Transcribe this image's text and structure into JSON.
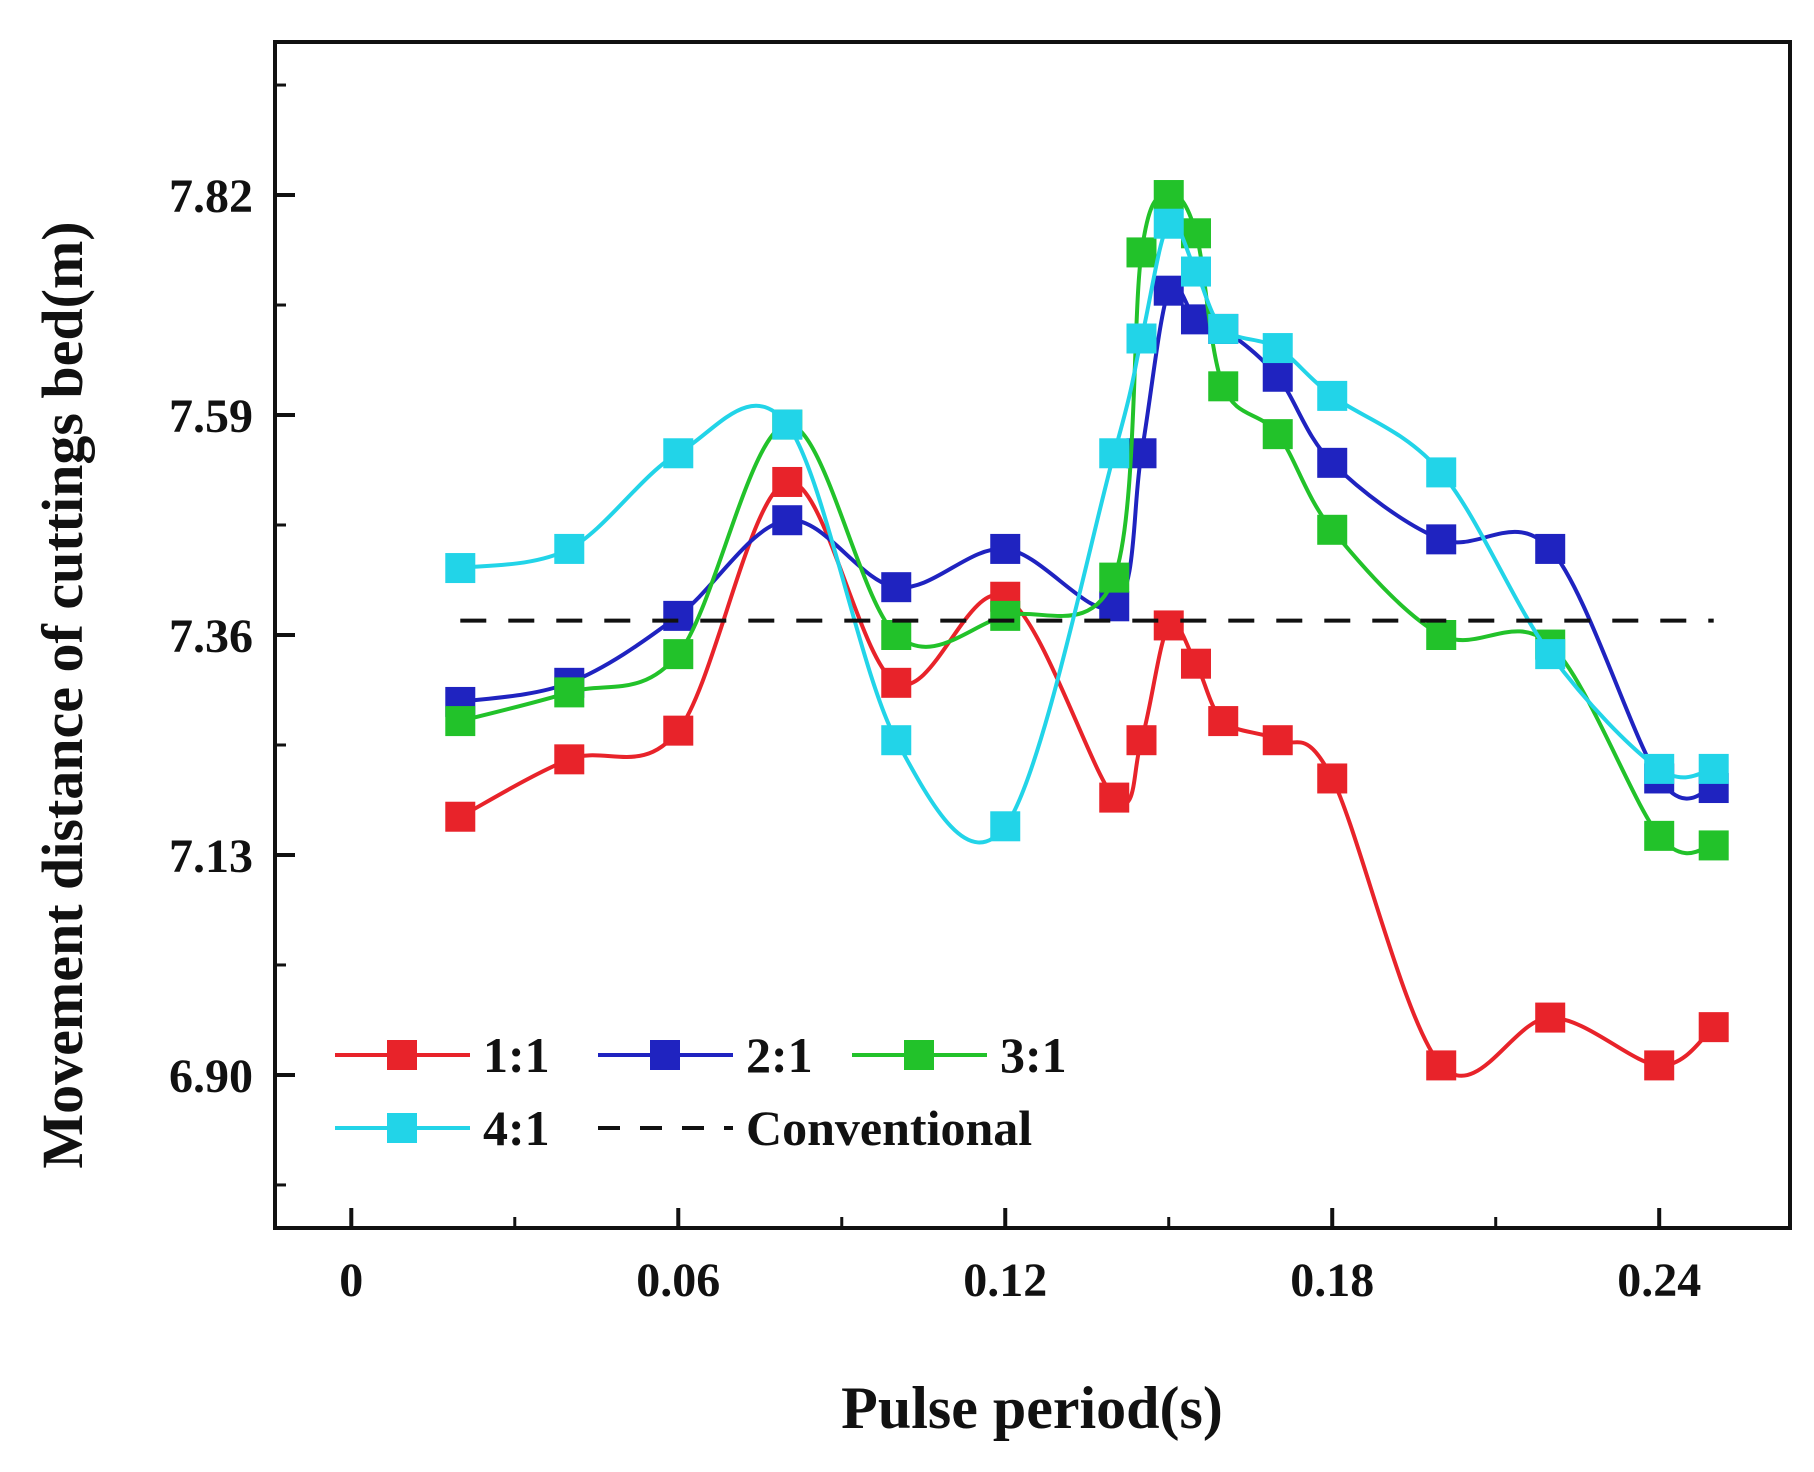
{
  "chart_data": {
    "type": "line",
    "xlabel": "Pulse period(s)",
    "ylabel": "Movement distance of cuttings bed(m)",
    "xlim": [
      -0.014,
      0.264
    ],
    "ylim": [
      6.74,
      7.98
    ],
    "xticks": [
      0,
      0.06,
      0.12,
      0.18,
      0.24
    ],
    "xtick_labels": [
      "0",
      "0.06",
      "0.12",
      "0.18",
      "0.24"
    ],
    "yticks": [
      6.9,
      7.13,
      7.36,
      7.59,
      7.82
    ],
    "ytick_labels": [
      "6.90",
      "7.13",
      "7.36",
      "7.59",
      "7.82"
    ],
    "grid": false,
    "legend_position": "bottom-left",
    "series": [
      {
        "name": "1:1",
        "color": "#e8232a",
        "style": "solid",
        "marker": "square",
        "x": [
          0.02,
          0.04,
          0.06,
          0.08,
          0.1,
          0.12,
          0.14,
          0.145,
          0.15,
          0.155,
          0.16,
          0.17,
          0.18,
          0.2,
          0.22,
          0.24,
          0.25
        ],
        "y": [
          7.17,
          7.23,
          7.26,
          7.52,
          7.31,
          7.4,
          7.19,
          7.25,
          7.37,
          7.33,
          7.27,
          7.25,
          7.21,
          6.91,
          6.96,
          6.91,
          6.95
        ]
      },
      {
        "name": "2:1",
        "color": "#1f23c0",
        "style": "solid",
        "marker": "square",
        "x": [
          0.02,
          0.04,
          0.06,
          0.08,
          0.1,
          0.12,
          0.14,
          0.145,
          0.15,
          0.155,
          0.16,
          0.17,
          0.18,
          0.2,
          0.22,
          0.24,
          0.25
        ],
        "y": [
          7.29,
          7.31,
          7.38,
          7.48,
          7.41,
          7.45,
          7.39,
          7.55,
          7.72,
          7.69,
          7.68,
          7.63,
          7.54,
          7.46,
          7.45,
          7.21,
          7.2
        ]
      },
      {
        "name": "3:1",
        "color": "#22c22a",
        "style": "solid",
        "marker": "square",
        "x": [
          0.02,
          0.04,
          0.06,
          0.08,
          0.1,
          0.12,
          0.14,
          0.145,
          0.15,
          0.155,
          0.16,
          0.17,
          0.18,
          0.2,
          0.22,
          0.24,
          0.25
        ],
        "y": [
          7.27,
          7.3,
          7.34,
          7.58,
          7.36,
          7.38,
          7.42,
          7.76,
          7.82,
          7.78,
          7.62,
          7.57,
          7.47,
          7.36,
          7.35,
          7.15,
          7.14
        ]
      },
      {
        "name": "4:1",
        "color": "#22d4e8",
        "style": "solid",
        "marker": "square",
        "x": [
          0.02,
          0.04,
          0.06,
          0.08,
          0.1,
          0.12,
          0.14,
          0.145,
          0.15,
          0.155,
          0.16,
          0.17,
          0.18,
          0.2,
          0.22,
          0.24,
          0.25
        ],
        "y": [
          7.43,
          7.45,
          7.55,
          7.58,
          7.25,
          7.16,
          7.55,
          7.67,
          7.79,
          7.74,
          7.68,
          7.66,
          7.61,
          7.53,
          7.34,
          7.22,
          7.22
        ]
      },
      {
        "name": "Conventional",
        "color": "#111111",
        "style": "dashed",
        "marker": "none",
        "x": [
          0.02,
          0.25
        ],
        "y": [
          7.375,
          7.375
        ]
      }
    ]
  }
}
